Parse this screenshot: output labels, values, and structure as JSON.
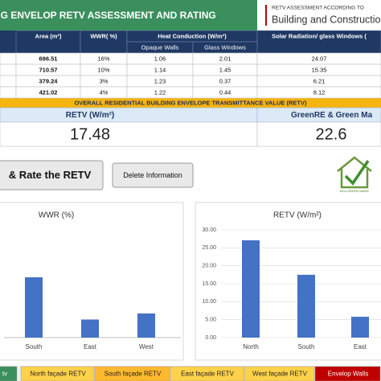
{
  "header": {
    "title": "NG ENVELOP RETV ASSESSMENT AND RATING",
    "logo_line1": "RETV ASSESSMENT ACCORDING TO",
    "logo_line2": "Building and Construction"
  },
  "table": {
    "headers": [
      "Area (m²)",
      "WWR( %)",
      "Heat Conduction (W/m²)",
      "Solar Radiation/ glass Windows ("
    ],
    "subheaders": [
      "Opaque Walls",
      "Glass Windows"
    ],
    "rows": [
      [
        "696.51",
        "16%",
        "1.06",
        "2.01",
        "24.07"
      ],
      [
        "710.57",
        "10%",
        "1.14",
        "1.45",
        "15.35"
      ],
      [
        "379.24",
        "3%",
        "1.23",
        "0.37",
        "6.21"
      ],
      [
        "421.02",
        "4%",
        "1.22",
        "0.44",
        "8.12"
      ]
    ]
  },
  "summary": {
    "banner": "OVERALL RESIDENTIAL BUILDING ENVELOPE TRANSMITTANCE VALUE (RETV)",
    "retv_label": "RETV (W/m²)",
    "retv_value": "17.48",
    "green_label": "GreenRE & Green Ma",
    "green_value": "22.6"
  },
  "buttons": [
    "& Rate the RETV",
    "Delete Information"
  ],
  "logo_caption": "BCA GREEN MARK",
  "charts": [
    {
      "type": "bar",
      "title": "WWR (%)",
      "categories": [
        "South",
        "East",
        "West"
      ],
      "values": [
        10,
        3,
        4
      ],
      "color": "#4472c4"
    },
    {
      "type": "bar",
      "title": "RETV (W/m²)",
      "categories": [
        "North",
        "South",
        "East"
      ],
      "values": [
        27.1,
        17.5,
        5.8
      ],
      "color": "#4472c4",
      "ylim": [
        0,
        30
      ],
      "yticks": [
        {
          "value": 0,
          "label": "0.00"
        },
        {
          "value": 5,
          "label": "5.00"
        },
        {
          "value": 10,
          "label": "10.00"
        },
        {
          "value": 15,
          "label": "15.00"
        },
        {
          "value": 20,
          "label": "20.00"
        },
        {
          "value": 25,
          "label": "25.00"
        },
        {
          "value": 30,
          "label": "30.00"
        }
      ],
      "grid": true
    }
  ],
  "tabs": [
    "tv",
    "North façade RETV",
    "South façade RETV",
    "East façade RETV",
    "West façade RETV",
    "Envelop Walls"
  ]
}
